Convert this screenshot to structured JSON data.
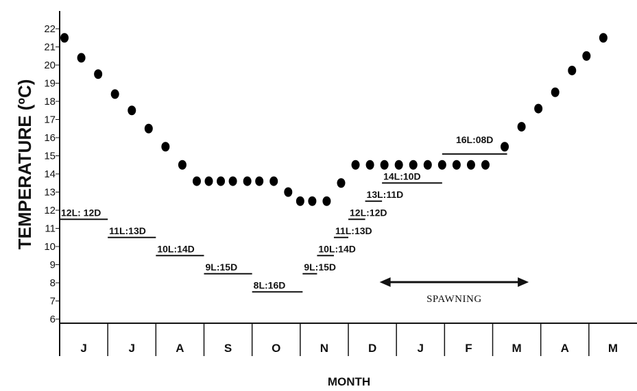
{
  "chart_data": {
    "type": "scatter",
    "xlabel": "MONTH",
    "ylabel": "TEMPERATURE (ºC)",
    "ylim": [
      5.5,
      22.5
    ],
    "yticks": [
      6,
      7,
      8,
      9,
      10,
      11,
      12,
      13,
      14,
      15,
      16,
      17,
      18,
      19,
      20,
      21,
      22
    ],
    "months": [
      "J",
      "J",
      "A",
      "S",
      "O",
      "N",
      "D",
      "J",
      "F",
      "M",
      "A",
      "M"
    ],
    "grid": false,
    "temperature_points": [
      {
        "x": 0.1,
        "y": 21.5
      },
      {
        "x": 0.45,
        "y": 20.4
      },
      {
        "x": 0.8,
        "y": 19.5
      },
      {
        "x": 1.15,
        "y": 18.4
      },
      {
        "x": 1.5,
        "y": 17.5
      },
      {
        "x": 1.85,
        "y": 16.5
      },
      {
        "x": 2.2,
        "y": 15.5
      },
      {
        "x": 2.55,
        "y": 14.5
      },
      {
        "x": 2.85,
        "y": 13.6
      },
      {
        "x": 3.1,
        "y": 13.6
      },
      {
        "x": 3.35,
        "y": 13.6
      },
      {
        "x": 3.6,
        "y": 13.6
      },
      {
        "x": 3.9,
        "y": 13.6
      },
      {
        "x": 4.15,
        "y": 13.6
      },
      {
        "x": 4.45,
        "y": 13.6
      },
      {
        "x": 4.75,
        "y": 13.0
      },
      {
        "x": 5.0,
        "y": 12.5
      },
      {
        "x": 5.25,
        "y": 12.5
      },
      {
        "x": 5.55,
        "y": 12.5
      },
      {
        "x": 5.85,
        "y": 13.5
      },
      {
        "x": 6.15,
        "y": 14.5
      },
      {
        "x": 6.45,
        "y": 14.5
      },
      {
        "x": 6.75,
        "y": 14.5
      },
      {
        "x": 7.05,
        "y": 14.5
      },
      {
        "x": 7.35,
        "y": 14.5
      },
      {
        "x": 7.65,
        "y": 14.5
      },
      {
        "x": 7.95,
        "y": 14.5
      },
      {
        "x": 8.25,
        "y": 14.5
      },
      {
        "x": 8.55,
        "y": 14.5
      },
      {
        "x": 8.85,
        "y": 14.5
      },
      {
        "x": 9.25,
        "y": 15.5
      },
      {
        "x": 9.6,
        "y": 16.6
      },
      {
        "x": 9.95,
        "y": 17.6
      },
      {
        "x": 10.3,
        "y": 18.5
      },
      {
        "x": 10.65,
        "y": 19.7
      },
      {
        "x": 10.95,
        "y": 20.5
      },
      {
        "x": 11.3,
        "y": 21.5
      }
    ],
    "photoperiods": [
      {
        "label": "12L: 12D",
        "x_start": 0.0,
        "x_end": 1.0,
        "y": 11.5
      },
      {
        "label": "11L:13D",
        "x_start": 1.0,
        "x_end": 2.0,
        "y": 10.5
      },
      {
        "label": "10L:14D",
        "x_start": 2.0,
        "x_end": 3.0,
        "y": 9.5
      },
      {
        "label": "9L:15D",
        "x_start": 3.0,
        "x_end": 4.0,
        "y": 8.5
      },
      {
        "label": "8L:16D",
        "x_start": 4.0,
        "x_end": 5.05,
        "y": 7.5
      },
      {
        "label": "9L:15D",
        "x_start": 5.05,
        "x_end": 5.35,
        "y": 8.5
      },
      {
        "label": "10L:14D",
        "x_start": 5.35,
        "x_end": 5.7,
        "y": 9.5
      },
      {
        "label": "11L:13D",
        "x_start": 5.7,
        "x_end": 6.0,
        "y": 10.5
      },
      {
        "label": "12L:12D",
        "x_start": 6.0,
        "x_end": 6.35,
        "y": 11.5
      },
      {
        "label": "13L:11D",
        "x_start": 6.35,
        "x_end": 6.7,
        "y": 12.5
      },
      {
        "label": "14L:10D",
        "x_start": 6.7,
        "x_end": 7.95,
        "y": 13.5
      },
      {
        "label": "16L:08D",
        "x_start": 7.95,
        "x_end": 9.3,
        "y": 15.1
      }
    ],
    "annotations": [
      {
        "text": "SPAWNING",
        "x_start": 6.65,
        "x_end": 9.75,
        "y": 8.0,
        "style": "double-arrow"
      }
    ]
  }
}
